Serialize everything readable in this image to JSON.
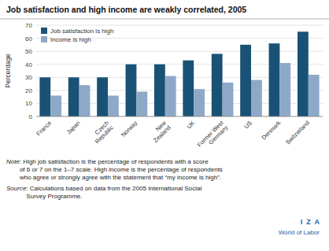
{
  "chart_data": {
    "type": "bar",
    "title": "Job satisfaction and high income are weakly correlated, 2005",
    "categories": [
      "France",
      "Japan",
      "Czech\nRepublic",
      "Norway",
      "New\nZealand",
      "UK",
      "Former West\nGermany",
      "US",
      "Denmark",
      "Switzerland"
    ],
    "series": [
      {
        "name": "Job satisfaction is high",
        "color": "#1a5276",
        "values": [
          30,
          30,
          30,
          40,
          40,
          43,
          48,
          55,
          56,
          65
        ]
      },
      {
        "name": "Income is high",
        "color": "#8ea9c8",
        "values": [
          16,
          24,
          16,
          19,
          31,
          21,
          26,
          28,
          41,
          32
        ]
      }
    ],
    "ylabel": "Percentage",
    "ylim": [
      0,
      70
    ],
    "yticks": [
      0,
      10,
      20,
      30,
      40,
      50,
      60,
      70
    ],
    "grid": true,
    "legend": "upper left",
    "annotations": [
      "Note",
      ": High job satisfaction is the percentage of respondents with a score\nof 6 or 7 on the 1–7 scale. High income is the percentage of respondents\nwho agree or strongly agree with the statement that “my income is high”.",
      "Source",
      ": Calculations based on data from the 2005 International Social\nSurvey Programme.",
      "I  Z  A",
      "World of Labor"
    ]
  }
}
